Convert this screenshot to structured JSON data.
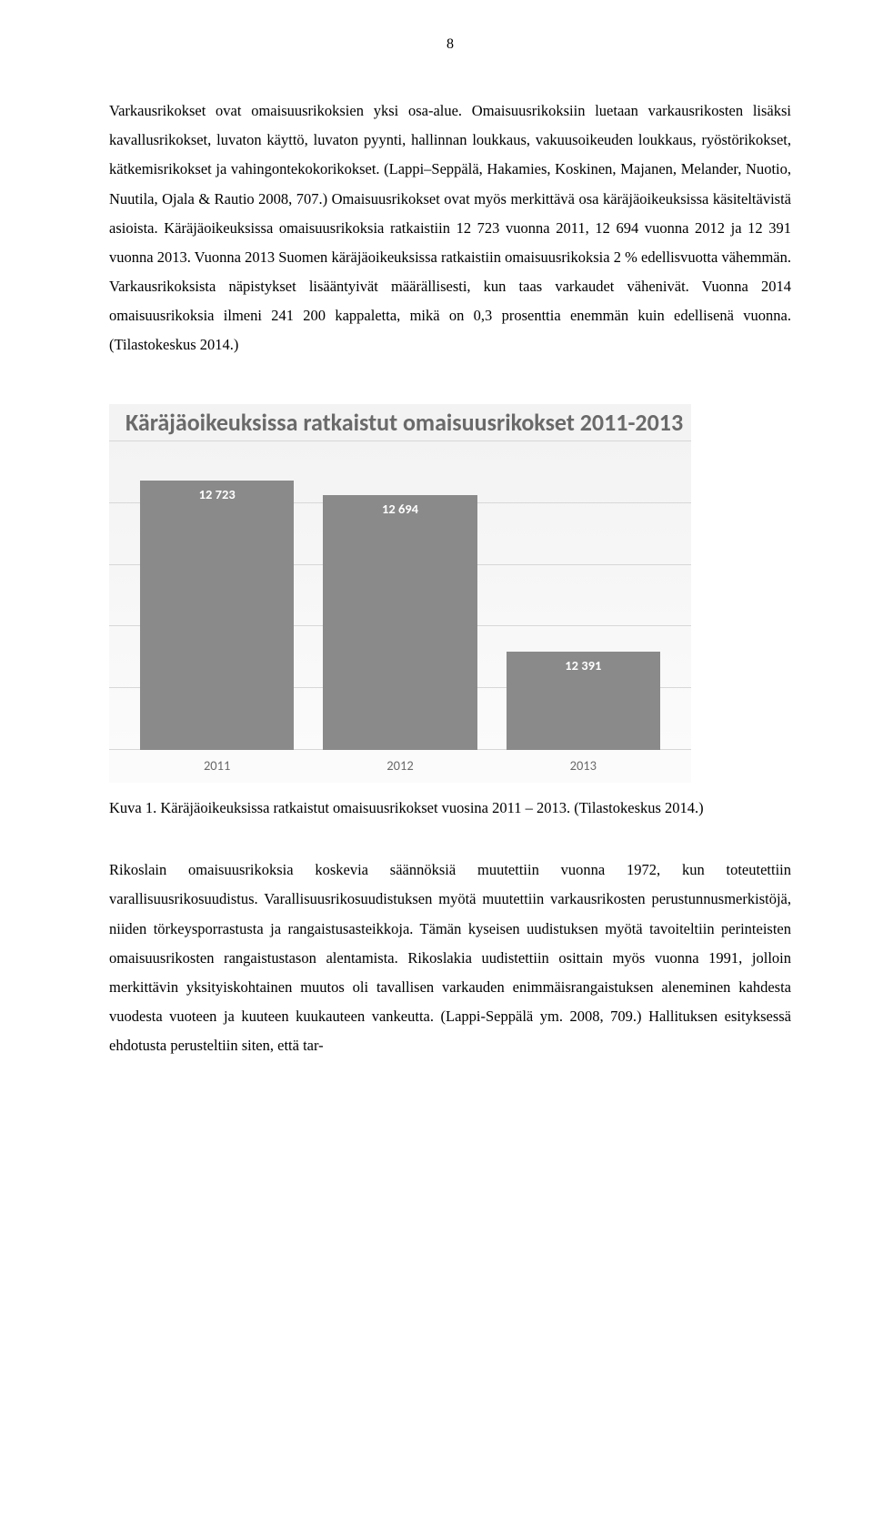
{
  "page_number": "8",
  "paragraphs": {
    "p1": "Varkausrikokset ovat omaisuusrikoksien yksi osa-alue. Omaisuusrikoksiin luetaan varkausrikosten lisäksi kavallusrikokset, luvaton käyttö, luvaton pyynti, hallinnan loukkaus, vakuusoikeuden loukkaus, ryöstörikokset, kätkemisrikokset ja vahingontekokorikokset. (Lappi–Seppälä, Hakamies, Koskinen, Majanen, Melander, Nuotio, Nuutila, Ojala & Rautio 2008, 707.) Omaisuusrikokset ovat myös merkittävä osa käräjäoikeuksissa käsiteltävistä asioista. Käräjäoikeuksissa omaisuusrikoksia ratkaistiin 12 723 vuonna 2011, 12 694 vuonna 2012 ja 12 391 vuonna 2013. Vuonna 2013 Suomen käräjäoikeuksissa ratkaistiin omaisuusrikoksia 2 % edellisvuotta vähemmän. Varkausrikoksista näpistykset lisääntyivät määrällisesti, kun taas varkaudet vähenivät. Vuonna 2014 omaisuusrikoksia ilmeni 241 200 kappaletta, mikä on 0,3 prosenttia enemmän kuin edellisenä vuonna. (Tilastokeskus 2014.)",
    "p2": "Rikoslain omaisuusrikoksia koskevia säännöksiä muutettiin vuonna 1972, kun toteutettiin varallisuusrikosuudistus. Varallisuusrikosuudistuksen myötä muutettiin varkausrikosten perustunnusmerkistöjä, niiden törkeysporrastusta ja rangaistusasteikkoja. Tämän kyseisen uudistuksen myötä tavoiteltiin perinteisten omaisuusrikosten rangaistustason alentamista. Rikoslakia uudistettiin osittain myös vuonna 1991, jolloin merkittävin yksityiskohtainen muutos oli tavallisen varkauden enimmäisrangaistuksen aleneminen kahdesta vuodesta vuoteen ja kuuteen kuukauteen vankeutta. (Lappi-Seppälä ym. 2008, 709.) Hallituksen esityksessä ehdotusta perusteltiin siten, että tar-"
  },
  "chart": {
    "type": "bar",
    "title": "Käräjäoikeuksissa ratkaistut omaisuusrikokset 2011-2013",
    "title_color": "#6a6a6a",
    "title_fontsize": 26,
    "categories": [
      "2011",
      "2012",
      "2013"
    ],
    "values": [
      12723,
      12694,
      12391
    ],
    "value_labels": [
      "12 723",
      "12 694",
      "12 391"
    ],
    "bar_color": "#8a8a8a",
    "bar_label_color": "#ffffff",
    "xlabel_color": "#6a6a6a",
    "gridline_count": 6,
    "grid_color": "#d7d7d7",
    "background_top": "#f3f3f3",
    "background_bottom": "#fbfbfb",
    "ylim": [
      12200,
      12800
    ],
    "bar_width_pct": 28
  },
  "caption": "Kuva 1. Käräjäoikeuksissa ratkaistut omaisuusrikokset vuosina 2011 – 2013. (Tilastokeskus 2014.)"
}
